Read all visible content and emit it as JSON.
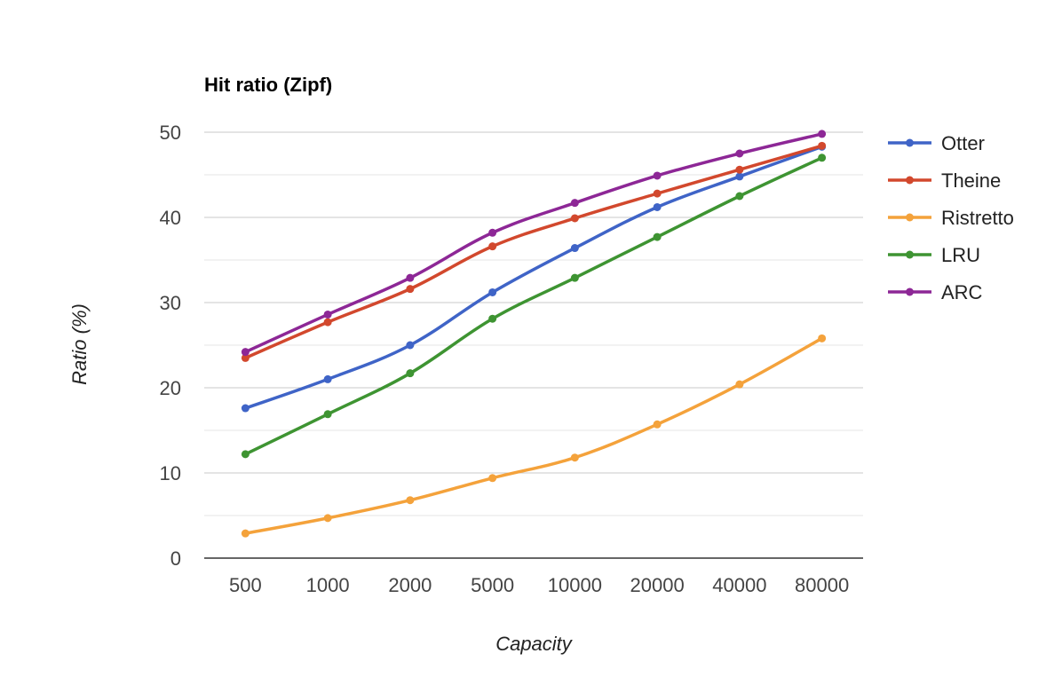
{
  "chart_data": {
    "type": "line",
    "title": "Hit ratio (Zipf)",
    "xlabel": "Capacity",
    "ylabel": "Ratio (%)",
    "categories": [
      "500",
      "1000",
      "2000",
      "5000",
      "10000",
      "20000",
      "40000",
      "80000"
    ],
    "ylim": [
      0,
      50
    ],
    "yticks": [
      "0",
      "10",
      "20",
      "30",
      "40",
      "50"
    ],
    "grid": true,
    "legend_position": "right",
    "series": [
      {
        "name": "Otter",
        "color": "#3F64C7",
        "values": [
          17.6,
          21.0,
          25.0,
          31.2,
          36.4,
          41.2,
          44.8,
          48.3
        ]
      },
      {
        "name": "Theine",
        "color": "#D2482D",
        "values": [
          23.5,
          27.7,
          31.6,
          36.6,
          39.9,
          42.8,
          45.6,
          48.4
        ]
      },
      {
        "name": "Ristretto",
        "color": "#F4A23B",
        "values": [
          2.9,
          4.7,
          6.8,
          9.4,
          11.8,
          15.7,
          20.4,
          25.8
        ]
      },
      {
        "name": "LRU",
        "color": "#3E9432",
        "values": [
          12.2,
          16.9,
          21.7,
          28.1,
          32.9,
          37.7,
          42.5,
          47.0
        ]
      },
      {
        "name": "ARC",
        "color": "#8D2796",
        "values": [
          24.2,
          28.6,
          32.9,
          38.2,
          41.7,
          44.9,
          47.5,
          49.8
        ]
      }
    ]
  }
}
